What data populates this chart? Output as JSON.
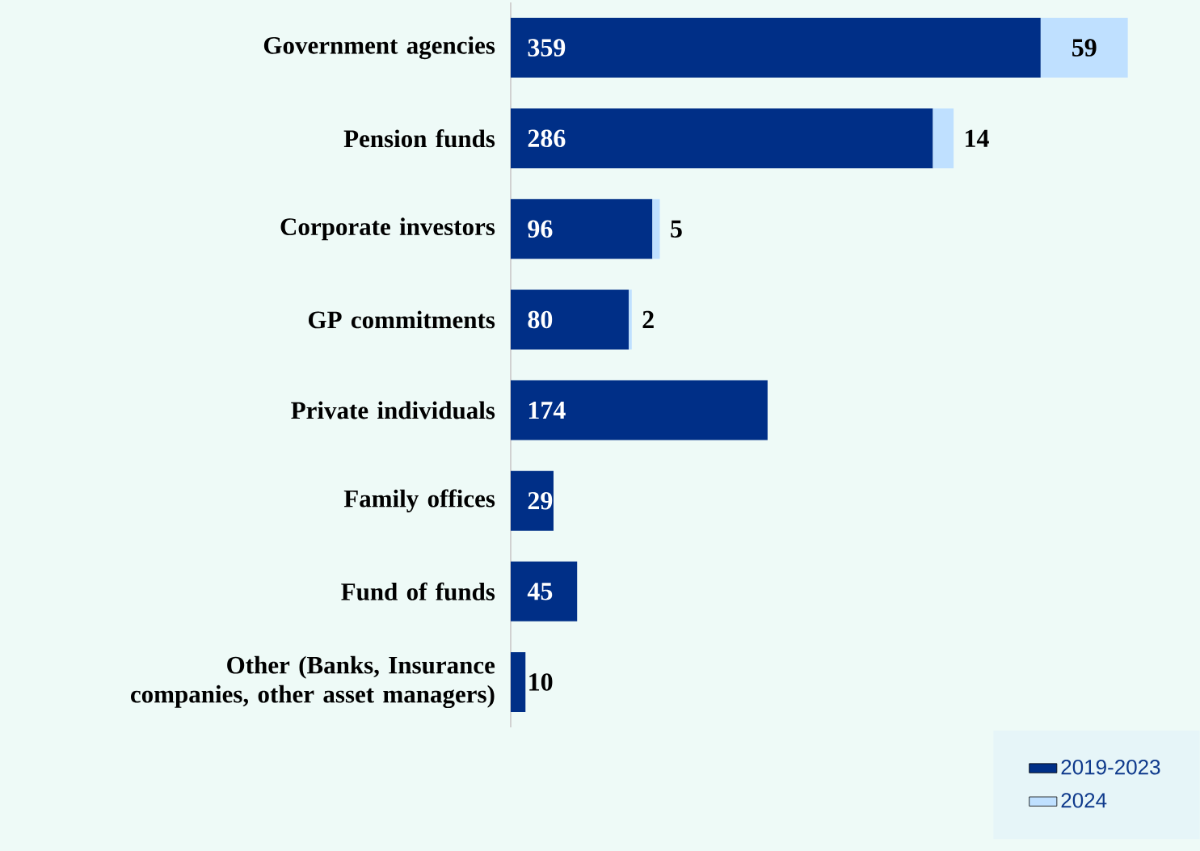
{
  "chart_data": {
    "type": "bar",
    "orientation": "horizontal",
    "stacked": true,
    "data_labels": true,
    "legend": "bottom right",
    "grid": false,
    "categories": [
      "Government agencies",
      "Pension funds",
      "Corporate investors",
      "GP commitments",
      "Private individuals",
      "Family offices",
      "Fund of funds",
      "Other (Banks, Insurance companies, other asset managers)"
    ],
    "series": [
      {
        "name": "2019-2023",
        "color": "#002f87",
        "values": [
          359,
          286,
          96,
          80,
          174,
          29,
          45,
          10
        ]
      },
      {
        "name": "2024",
        "color": "#bfe0ff",
        "values": [
          59,
          14,
          5,
          2,
          null,
          null,
          null,
          null
        ]
      }
    ]
  }
}
